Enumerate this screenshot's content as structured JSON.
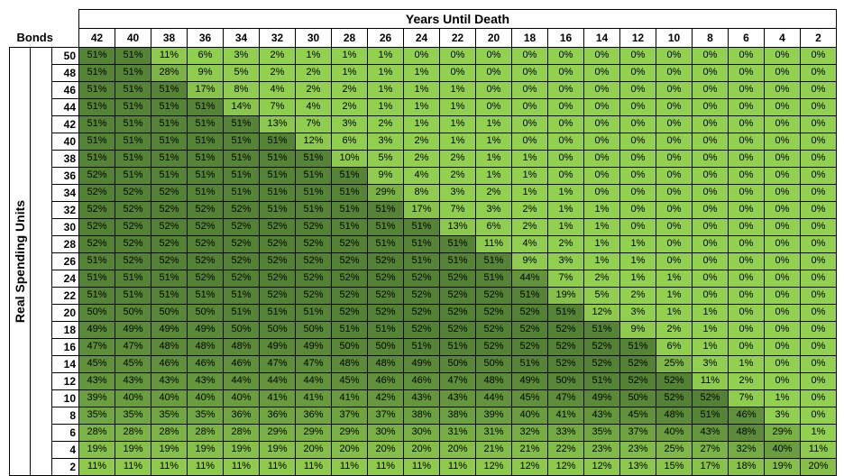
{
  "title": "Years Until Death",
  "row_header_label": "Bonds",
  "side_label": "Real Spending Units",
  "chart_data": {
    "type": "heatmap",
    "x_label": "Years Until Death",
    "y_label": "Real Spending Units",
    "corner_label": "Bonds",
    "columns": [
      "42",
      "40",
      "38",
      "36",
      "34",
      "32",
      "30",
      "28",
      "26",
      "24",
      "22",
      "20",
      "18",
      "16",
      "14",
      "12",
      "10",
      "8",
      "6",
      "4",
      "2"
    ],
    "rows": [
      "50",
      "48",
      "46",
      "44",
      "42",
      "40",
      "38",
      "36",
      "34",
      "32",
      "30",
      "28",
      "26",
      "24",
      "22",
      "20",
      "18",
      "16",
      "14",
      "12",
      "10",
      "8",
      "6",
      "4",
      "2"
    ],
    "values": [
      [
        51,
        51,
        11,
        6,
        3,
        2,
        1,
        1,
        1,
        0,
        0,
        0,
        0,
        0,
        0,
        0,
        0,
        0,
        0,
        0,
        0
      ],
      [
        51,
        51,
        28,
        9,
        5,
        2,
        2,
        1,
        1,
        1,
        0,
        0,
        0,
        0,
        0,
        0,
        0,
        0,
        0,
        0,
        0
      ],
      [
        51,
        51,
        51,
        17,
        8,
        4,
        2,
        2,
        1,
        1,
        1,
        0,
        0,
        0,
        0,
        0,
        0,
        0,
        0,
        0,
        0
      ],
      [
        51,
        51,
        51,
        51,
        14,
        7,
        4,
        2,
        1,
        1,
        1,
        0,
        0,
        0,
        0,
        0,
        0,
        0,
        0,
        0,
        0
      ],
      [
        51,
        51,
        51,
        51,
        51,
        13,
        7,
        3,
        2,
        1,
        1,
        1,
        0,
        0,
        0,
        0,
        0,
        0,
        0,
        0,
        0
      ],
      [
        51,
        51,
        51,
        51,
        51,
        51,
        12,
        6,
        3,
        2,
        1,
        1,
        0,
        0,
        0,
        0,
        0,
        0,
        0,
        0,
        0
      ],
      [
        51,
        51,
        51,
        51,
        51,
        51,
        51,
        10,
        5,
        2,
        2,
        1,
        1,
        0,
        0,
        0,
        0,
        0,
        0,
        0,
        0
      ],
      [
        52,
        51,
        51,
        51,
        51,
        51,
        51,
        51,
        9,
        4,
        2,
        1,
        1,
        0,
        0,
        0,
        0,
        0,
        0,
        0,
        0
      ],
      [
        52,
        52,
        52,
        51,
        51,
        51,
        51,
        51,
        29,
        8,
        3,
        2,
        1,
        1,
        0,
        0,
        0,
        0,
        0,
        0,
        0
      ],
      [
        52,
        52,
        52,
        52,
        52,
        51,
        51,
        51,
        51,
        17,
        7,
        3,
        2,
        1,
        1,
        0,
        0,
        0,
        0,
        0,
        0
      ],
      [
        52,
        52,
        52,
        52,
        52,
        52,
        52,
        51,
        51,
        51,
        13,
        6,
        2,
        1,
        1,
        0,
        0,
        0,
        0,
        0,
        0
      ],
      [
        52,
        52,
        52,
        52,
        52,
        52,
        52,
        52,
        51,
        51,
        51,
        11,
        4,
        2,
        1,
        1,
        0,
        0,
        0,
        0,
        0
      ],
      [
        51,
        52,
        52,
        52,
        52,
        52,
        52,
        52,
        52,
        51,
        51,
        51,
        9,
        3,
        1,
        1,
        0,
        0,
        0,
        0,
        0
      ],
      [
        51,
        51,
        51,
        52,
        52,
        52,
        52,
        52,
        52,
        52,
        52,
        51,
        44,
        7,
        2,
        1,
        1,
        0,
        0,
        0,
        0
      ],
      [
        51,
        51,
        51,
        51,
        51,
        52,
        52,
        52,
        52,
        52,
        52,
        52,
        51,
        19,
        5,
        2,
        1,
        0,
        0,
        0,
        0
      ],
      [
        50,
        50,
        50,
        50,
        51,
        51,
        51,
        52,
        52,
        52,
        52,
        52,
        52,
        51,
        12,
        3,
        1,
        1,
        0,
        0,
        0
      ],
      [
        49,
        49,
        49,
        49,
        50,
        50,
        50,
        51,
        51,
        52,
        52,
        52,
        52,
        52,
        51,
        9,
        2,
        1,
        0,
        0,
        0
      ],
      [
        47,
        47,
        48,
        48,
        48,
        49,
        49,
        50,
        50,
        51,
        51,
        52,
        52,
        52,
        52,
        51,
        6,
        1,
        0,
        0,
        0
      ],
      [
        45,
        45,
        46,
        46,
        46,
        47,
        47,
        48,
        48,
        49,
        50,
        50,
        51,
        52,
        52,
        52,
        25,
        3,
        1,
        0,
        0
      ],
      [
        43,
        43,
        43,
        43,
        44,
        44,
        44,
        45,
        46,
        46,
        47,
        48,
        49,
        50,
        51,
        52,
        52,
        11,
        2,
        0,
        0
      ],
      [
        39,
        40,
        40,
        40,
        40,
        41,
        41,
        41,
        42,
        43,
        43,
        44,
        45,
        47,
        49,
        50,
        52,
        52,
        7,
        1,
        0
      ],
      [
        35,
        35,
        35,
        35,
        36,
        36,
        36,
        37,
        37,
        38,
        38,
        39,
        40,
        41,
        43,
        45,
        48,
        51,
        46,
        3,
        0
      ],
      [
        28,
        28,
        28,
        28,
        28,
        29,
        29,
        29,
        30,
        30,
        31,
        31,
        32,
        33,
        35,
        37,
        40,
        43,
        48,
        29,
        1
      ],
      [
        19,
        19,
        19,
        19,
        19,
        19,
        20,
        20,
        20,
        20,
        20,
        21,
        21,
        22,
        23,
        23,
        25,
        27,
        32,
        40,
        11
      ],
      [
        11,
        11,
        11,
        11,
        11,
        11,
        11,
        11,
        11,
        11,
        11,
        12,
        12,
        12,
        12,
        13,
        15,
        17,
        18,
        19,
        20
      ]
    ],
    "value_suffix": "%",
    "colors": {
      "low": "#92d050",
      "high": "#548235"
    },
    "value_range": [
      0,
      52
    ],
    "grid": true,
    "legend": "none"
  }
}
